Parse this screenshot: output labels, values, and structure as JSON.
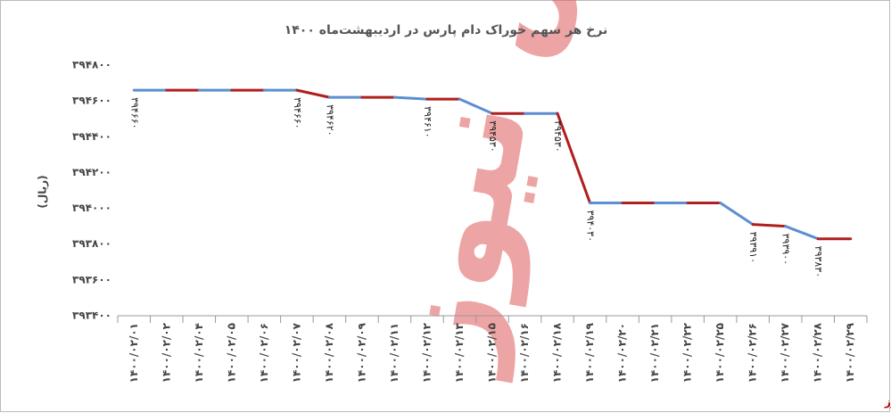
{
  "chart_data": {
    "type": "line",
    "title": "نرخ هر سهم خوراک  دام پارس در اردیبهشت‌ماه ۱۴۰۰",
    "y_label": "(ریال)",
    "watermark": "بورس نیوز",
    "source": "بورس نیوز",
    "categories": [
      "۱۴۰۰/۰۲/۰۱",
      "۱۴۰۰/۰۲/۰۲",
      "۱۴۰۰/۰۲/۰۴",
      "۱۴۰۰/۰۲/۰۵",
      "۱۴۰۰/۰۲/۰۶",
      "۱۴۰۰/۰۲/۰۷",
      "۱۴۰۰/۰۲/۰۸",
      "۱۴۰۰/۰۲/۰۹",
      "۱۴۰۰/۰۲/۱۱",
      "۱۴۰۰/۰۲/۱۲",
      "۱۴۰۰/۰۲/۱۳",
      "۱۴۰۰/۰۲/۱۵",
      "۱۴۰۰/۰۲/۱۶",
      "۱۴۰۰/۰۲/۱۸",
      "۱۴۰۰/۰۲/۱۹",
      "۱۴۰۰/۰۲/۲۰",
      "۱۴۰۰/۰۲/۲۱",
      "۱۴۰۰/۰۲/۲۲",
      "۱۴۰۰/۰۲/۲۵",
      "۱۴۰۰/۰۲/۲۶",
      "۱۴۰۰/۰۲/۲۷",
      "۱۴۰۰/۰۲/۲۸",
      "۱۴۰۰/۰۲/۲۹"
    ],
    "values": [
      394660,
      394660,
      394660,
      394660,
      394660,
      394660,
      394620,
      394620,
      394620,
      394610,
      394610,
      394530,
      394530,
      394530,
      394030,
      394030,
      394030,
      394030,
      394030,
      393910,
      393900,
      393830,
      393830
    ],
    "value_labels": [
      "۳۹۴۶۶۰",
      null,
      null,
      null,
      null,
      "۳۹۴۶۶۰",
      "۳۹۴۶۲۰",
      null,
      null,
      "۳۹۴۶۱۰",
      null,
      "۳۹۴۵۳۰",
      null,
      "۳۹۴۵۳۰",
      "۳۹۴۰۳۰",
      null,
      null,
      null,
      null,
      "۳۹۳۹۱۰",
      "۳۹۳۹۰۰",
      "۳۹۳۸۳۰",
      null
    ],
    "colors": [
      "#5b8fd0",
      "#b01e1e"
    ],
    "ylim": [
      393400,
      394800
    ],
    "yticks": [
      {
        "value": 394800,
        "label": "۳۹۴۸۰۰"
      },
      {
        "value": 394600,
        "label": "۳۹۴۶۰۰"
      },
      {
        "value": 394400,
        "label": "۳۹۴۴۰۰"
      },
      {
        "value": 394200,
        "label": "۳۹۴۲۰۰"
      },
      {
        "value": 394000,
        "label": "۳۹۴۰۰۰"
      },
      {
        "value": 393800,
        "label": "۳۹۳۸۰۰"
      },
      {
        "value": 393600,
        "label": "۳۹۳۶۰۰"
      },
      {
        "value": 393400,
        "label": "۳۹۳۴۰۰"
      }
    ]
  }
}
